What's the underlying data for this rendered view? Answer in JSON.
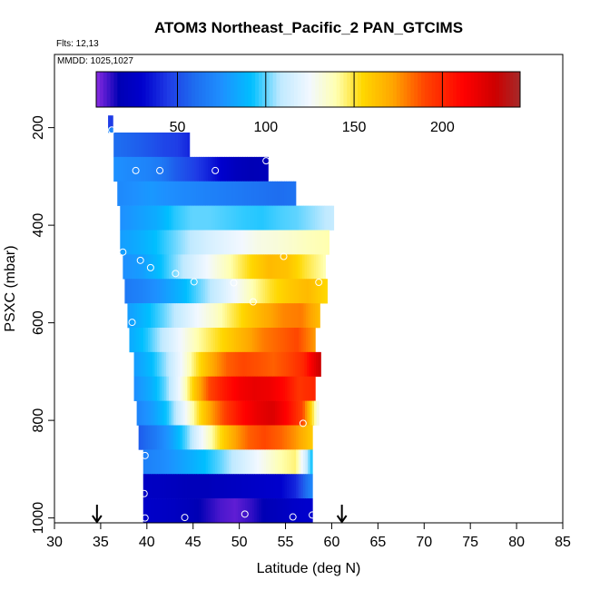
{
  "chart_data": {
    "type": "heatmap",
    "title": "ATOM3 Northeast_Pacific_2 PAN_GTCIMS",
    "flights_label": "Flts: 12,13",
    "dates_label": "MMDD: 1025,1027",
    "xlabel": "Latitude (deg N)",
    "ylabel": "PSXC (mbar)",
    "xlim": [
      30,
      85
    ],
    "ylim": [
      1010,
      50
    ],
    "x_ticks": [
      "30",
      "35",
      "40",
      "45",
      "50",
      "55",
      "60",
      "65",
      "70",
      "75",
      "80",
      "85"
    ],
    "y_ticks": [
      "200",
      "400",
      "600",
      "800",
      "1000"
    ],
    "colorbar": {
      "range": [
        4,
        244
      ],
      "tick_values": [
        50,
        100,
        150,
        200
      ],
      "tick_labels": [
        "50",
        "100",
        "150",
        "200"
      ]
    },
    "arrows_at_latitude": [
      34.6,
      61.1
    ],
    "color_stops": [
      [
        4,
        "#8a2be2"
      ],
      [
        17,
        "#0000b4"
      ],
      [
        30,
        "#0000cd"
      ],
      [
        45,
        "#1f3ce6"
      ],
      [
        60,
        "#1e6ef0"
      ],
      [
        75,
        "#1e90ff"
      ],
      [
        92,
        "#00bfff"
      ],
      [
        108,
        "#bfe9ff"
      ],
      [
        125,
        "#f2f8ff"
      ],
      [
        140,
        "#ffffb0"
      ],
      [
        155,
        "#ffd700"
      ],
      [
        172,
        "#ffa500"
      ],
      [
        190,
        "#ff4500"
      ],
      [
        212,
        "#ff0000"
      ],
      [
        230,
        "#cd0000"
      ],
      [
        244,
        "#a52a2a"
      ]
    ],
    "altitude_bins": [
      {
        "p_top": 175,
        "p_bot": 200,
        "start": 35.8,
        "end": 36.3,
        "values": [
          45
        ]
      },
      {
        "p_top": 200,
        "p_bot": 210,
        "start": 35.8,
        "end": 36.3,
        "values": [
          70
        ]
      },
      {
        "p_top": 210,
        "p_bot": 260,
        "start": 36.4,
        "end": 44.6,
        "values": [
          60,
          58,
          55,
          52,
          48,
          46,
          40
        ]
      },
      {
        "p_top": 260,
        "p_bot": 310,
        "start": 36.4,
        "end": 53.1,
        "values": [
          75,
          72,
          70,
          65,
          55,
          48,
          40,
          30,
          22,
          18,
          20
        ]
      },
      {
        "p_top": 310,
        "p_bot": 360,
        "start": 36.8,
        "end": 56.1,
        "values": [
          72,
          75,
          78,
          75,
          72,
          70,
          68,
          66,
          64,
          62,
          60,
          62
        ]
      },
      {
        "p_top": 360,
        "p_bot": 410,
        "start": 37.1,
        "end": 60.2,
        "values": [
          75,
          80,
          85,
          95,
          100,
          100,
          98,
          96,
          95,
          98,
          100,
          105,
          110
        ]
      },
      {
        "p_top": 410,
        "p_bot": 460,
        "start": 37.1,
        "end": 59.7,
        "values": [
          80,
          85,
          92,
          100,
          108,
          115,
          120,
          125,
          130,
          132,
          135,
          138,
          140
        ]
      },
      {
        "p_top": 460,
        "p_bot": 510,
        "start": 37.4,
        "end": 59.3,
        "values": [
          75,
          80,
          92,
          105,
          118,
          130,
          142,
          155,
          165,
          162,
          150,
          140
        ]
      },
      {
        "p_top": 510,
        "p_bot": 560,
        "start": 37.6,
        "end": 59.5,
        "values": [
          65,
          70,
          78,
          88,
          100,
          112,
          125,
          140,
          152,
          160,
          165,
          155
        ]
      },
      {
        "p_top": 560,
        "p_bot": 610,
        "start": 37.9,
        "end": 58.7,
        "values": [
          80,
          90,
          100,
          112,
          125,
          135,
          148,
          160,
          170,
          178,
          180,
          165
        ]
      },
      {
        "p_top": 610,
        "p_bot": 660,
        "start": 38.1,
        "end": 58.2,
        "values": [
          85,
          95,
          110,
          125,
          140,
          150,
          160,
          170,
          180,
          185,
          190,
          175
        ]
      },
      {
        "p_top": 660,
        "p_bot": 710,
        "start": 38.6,
        "end": 58.8,
        "values": [
          80,
          90,
          105,
          125,
          150,
          170,
          185,
          190,
          188,
          185,
          190,
          200,
          230
        ]
      },
      {
        "p_top": 710,
        "p_bot": 760,
        "start": 38.6,
        "end": 58.2,
        "values": [
          75,
          85,
          100,
          125,
          160,
          190,
          205,
          215,
          220,
          218,
          210,
          195,
          200
        ]
      },
      {
        "p_top": 760,
        "p_bot": 810,
        "start": 38.9,
        "end": 58.6,
        "values": [
          70,
          80,
          95,
          120,
          150,
          175,
          195,
          210,
          220,
          225,
          210,
          190,
          130
        ]
      },
      {
        "p_top": 810,
        "p_bot": 860,
        "start": 39.1,
        "end": 57.9,
        "values": [
          55,
          65,
          80,
          100,
          125,
          150,
          170,
          185,
          190,
          185,
          175,
          160
        ]
      },
      {
        "p_top": 860,
        "p_bot": 910,
        "start": 39.6,
        "end": 57.9,
        "values": [
          68,
          72,
          78,
          85,
          92,
          100,
          110,
          120,
          130,
          140,
          145,
          95
        ]
      },
      {
        "p_top": 910,
        "p_bot": 960,
        "start": 39.6,
        "end": 57.9,
        "values": [
          25,
          24,
          22,
          20,
          20,
          22,
          24,
          26,
          28,
          30,
          40,
          70
        ]
      },
      {
        "p_top": 960,
        "p_bot": 1010,
        "start": 39.6,
        "end": 57.9,
        "values": [
          28,
          26,
          24,
          20,
          15,
          10,
          8,
          12,
          18,
          22,
          28,
          30
        ]
      }
    ],
    "circles": [
      [
        36.2,
        205
      ],
      [
        38.8,
        288
      ],
      [
        41.4,
        288
      ],
      [
        47.4,
        288
      ],
      [
        52.9,
        268
      ],
      [
        37.4,
        455
      ],
      [
        39.3,
        472
      ],
      [
        40.4,
        487
      ],
      [
        43.1,
        499
      ],
      [
        45.1,
        516
      ],
      [
        49.4,
        518
      ],
      [
        51.5,
        557
      ],
      [
        54.8,
        464
      ],
      [
        58.6,
        517
      ],
      [
        38.4,
        599
      ],
      [
        56.9,
        806
      ],
      [
        39.8,
        872
      ],
      [
        39.7,
        950
      ],
      [
        39.8,
        1000
      ],
      [
        44.1,
        999
      ],
      [
        50.6,
        992
      ],
      [
        55.8,
        998
      ],
      [
        57.9,
        994
      ]
    ]
  }
}
